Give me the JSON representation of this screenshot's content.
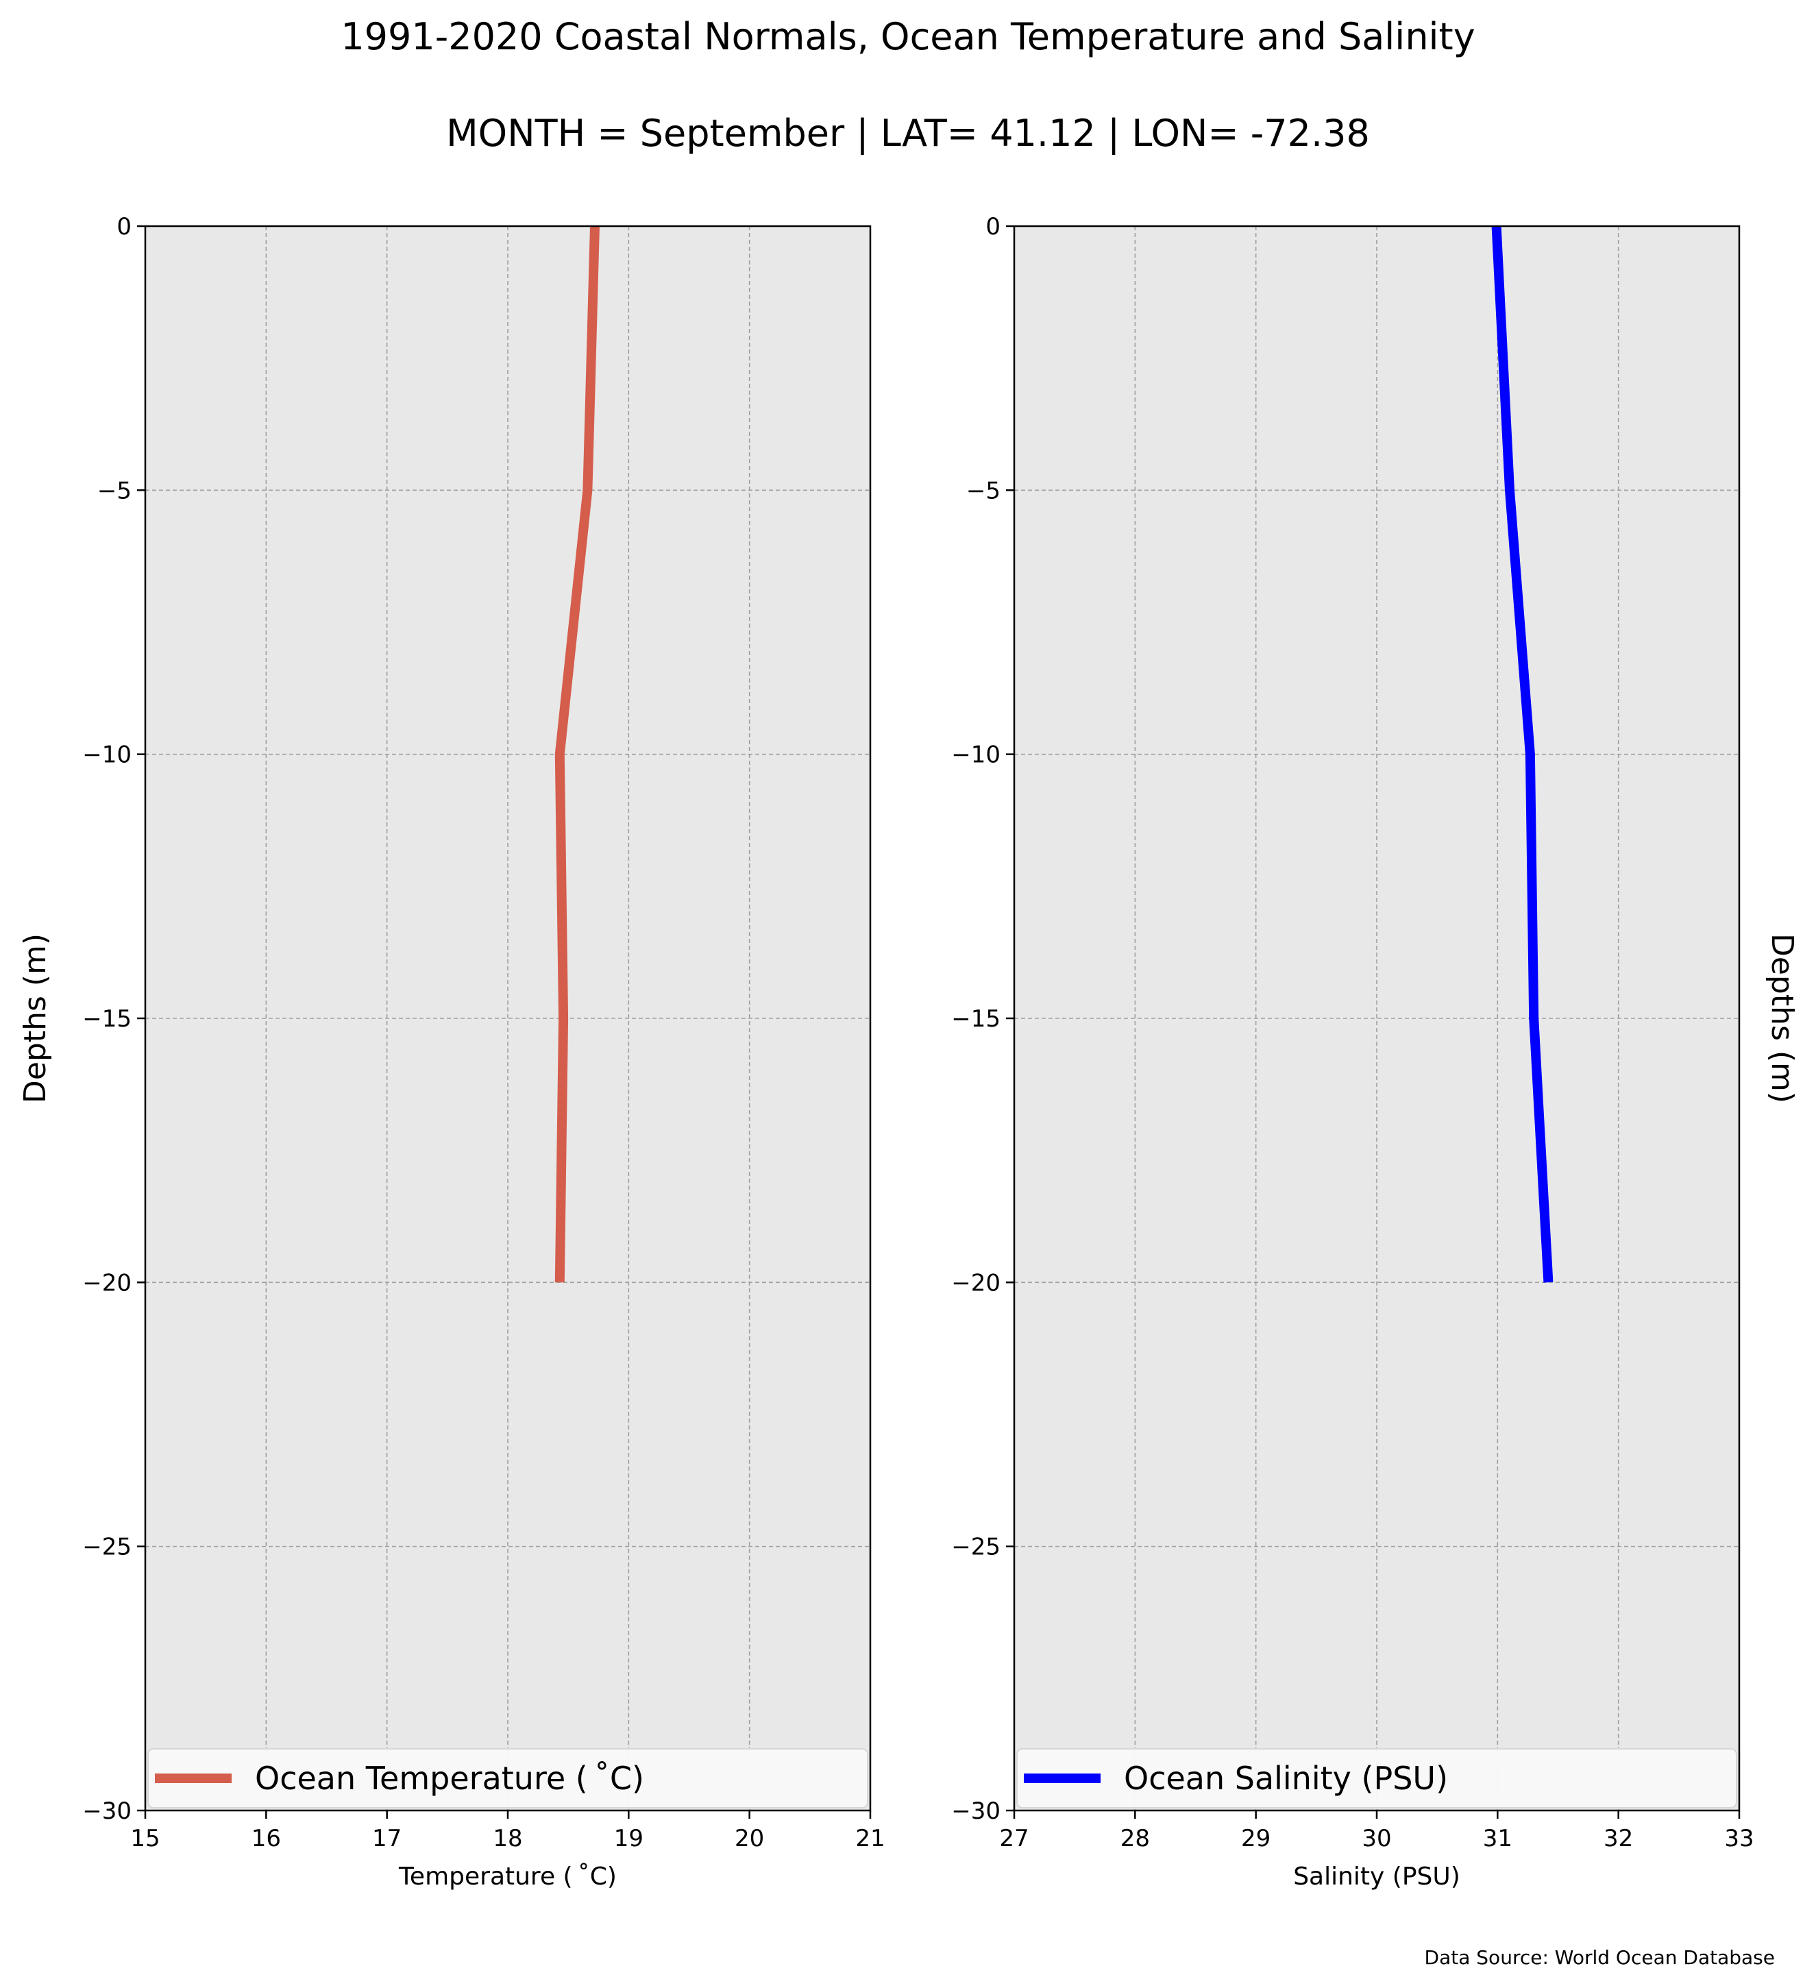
{
  "figure": {
    "title": "1991-2020 Coastal Normals, Ocean Temperature and Salinity",
    "subtitle": "MONTH = September | LAT= 41.12 | LON= -72.38",
    "source": "Data Source: World Ocean Database",
    "background_color": "#ffffff",
    "panel_color": "#e8e8e8",
    "grid_color": "#a0a0a0"
  },
  "chart_data": [
    {
      "type": "line",
      "title": "",
      "xlabel": "Temperature ($^\\circ$C)",
      "ylabel": "Depths (m)",
      "xlim": [
        15,
        21
      ],
      "ylim": [
        -30,
        0
      ],
      "xticks": [
        15,
        16,
        17,
        18,
        19,
        20,
        21
      ],
      "xtick_labels": [
        "15",
        "16",
        "17",
        "18",
        "19",
        "20",
        "21"
      ],
      "yticks": [
        0,
        -5,
        -10,
        -15,
        -20,
        -25,
        -30
      ],
      "ytick_labels": [
        "0",
        "−5",
        "−10",
        "−15",
        "−20",
        "−25",
        "−30"
      ],
      "grid": true,
      "legend_position": "bottom",
      "series": [
        {
          "name": "Ocean Temperature ($^\\circ$C)",
          "color": "#d45d4c",
          "x": [
            18.72,
            18.66,
            18.43,
            18.46,
            18.43
          ],
          "y": [
            0,
            -5,
            -10,
            -15,
            -20
          ]
        }
      ]
    },
    {
      "type": "line",
      "title": "",
      "xlabel": "Salinity (PSU)",
      "ylabel": "Depths (m)",
      "xlim": [
        27,
        33
      ],
      "ylim": [
        -30,
        0
      ],
      "xticks": [
        27,
        28,
        29,
        30,
        31,
        32,
        33
      ],
      "xtick_labels": [
        "27",
        "28",
        "29",
        "30",
        "31",
        "32",
        "33"
      ],
      "yticks": [
        0,
        -5,
        -10,
        -15,
        -20,
        -25,
        -30
      ],
      "ytick_labels": [
        "0",
        "−5",
        "−10",
        "−15",
        "−20",
        "−25",
        "−30"
      ],
      "grid": true,
      "legend_position": "bottom",
      "series": [
        {
          "name": "Ocean Salinity (PSU)",
          "color": "#0000ff",
          "x": [
            30.99,
            31.1,
            31.27,
            31.3,
            31.42
          ],
          "y": [
            0,
            -5,
            -10,
            -15,
            -20
          ]
        }
      ]
    }
  ]
}
